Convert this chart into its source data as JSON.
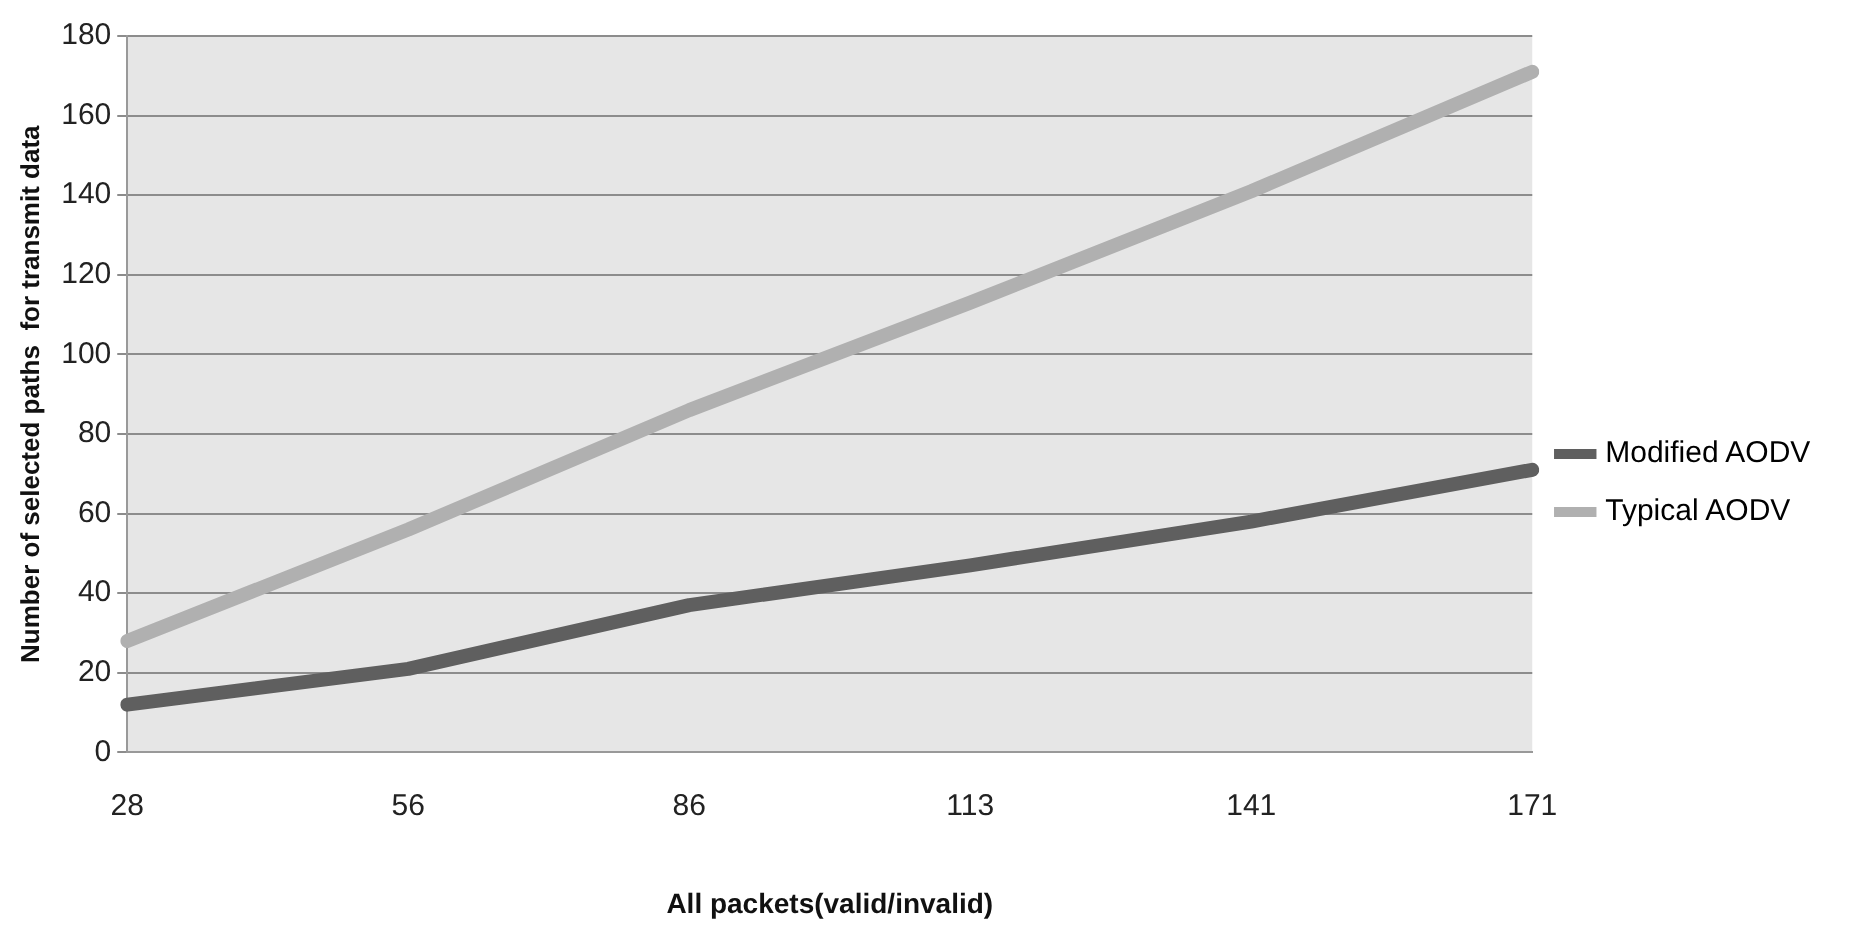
{
  "chart_data": {
    "type": "line",
    "xlabel": "All packets(valid/invalid)",
    "ylabel": "Number of selected paths  for transmit data",
    "categories": [
      "28",
      "56",
      "86",
      "113",
      "141",
      "171"
    ],
    "series": [
      {
        "name": "Modified AODV",
        "color": "#5f5f5f",
        "values": [
          12,
          21,
          37,
          47,
          58,
          71
        ]
      },
      {
        "name": "Typical AODV",
        "color": "#b0b0b0",
        "values": [
          28,
          56,
          86,
          113,
          141,
          171
        ]
      }
    ],
    "ylim": [
      0,
      180
    ],
    "yticks": [
      0,
      20,
      40,
      60,
      80,
      100,
      120,
      140,
      160,
      180
    ],
    "grid": "y",
    "legend": "right",
    "marker": "none",
    "line_style": "solid"
  }
}
